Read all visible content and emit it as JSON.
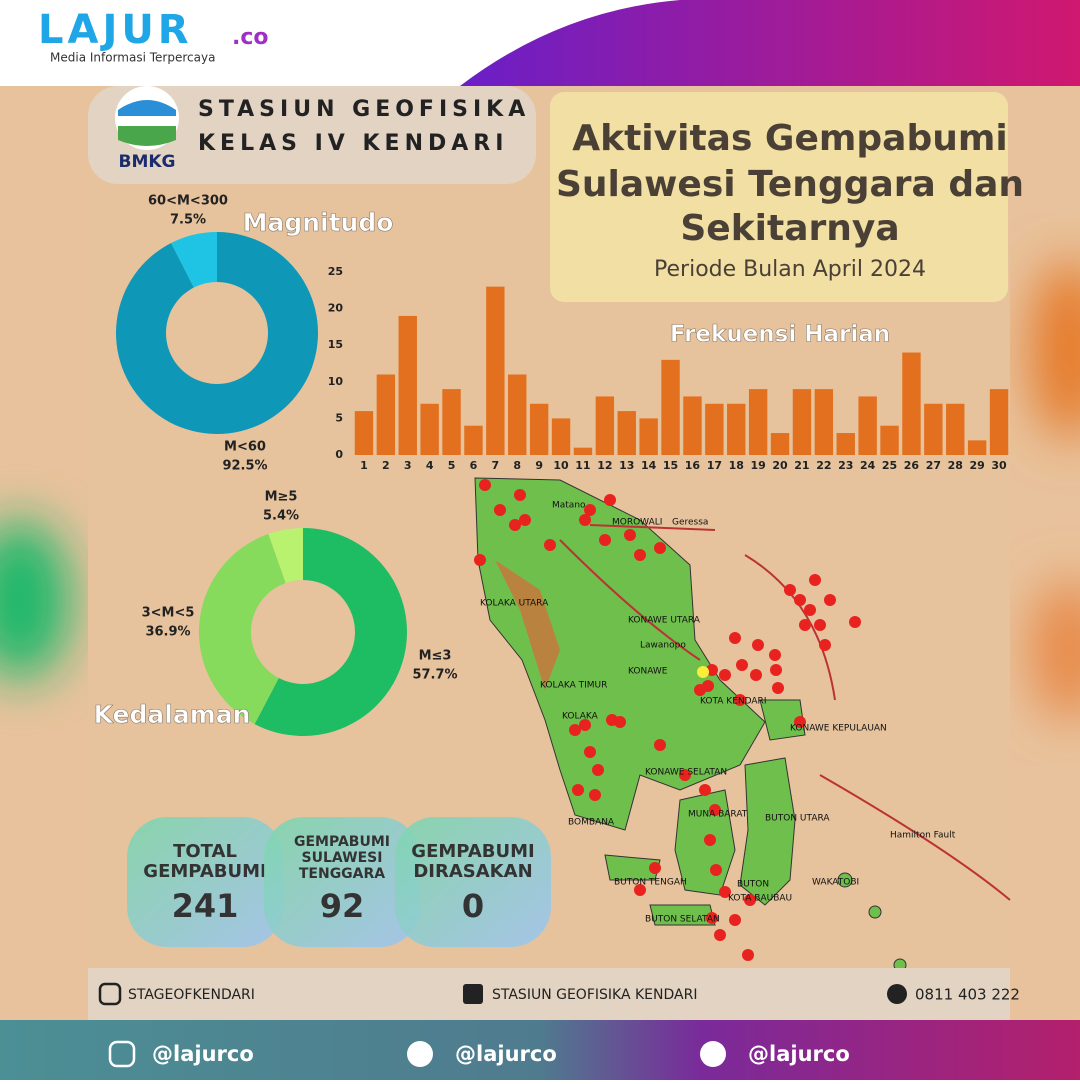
{
  "header": {
    "brand": "LAJUR",
    "brand_suffix": ".co",
    "tagline": "Media Informasi Terpercaya"
  },
  "agency": {
    "logo_text": "BMKG",
    "line1": "STASIUN GEOFISIKA",
    "line2": "KELAS IV KENDARI"
  },
  "title": {
    "lines": [
      "Aktivitas Gempabumi",
      "Sulawesi Tenggara dan",
      "Sekitarnya"
    ],
    "subtitle": "Periode Bulan April 2024"
  },
  "chart_data": [
    {
      "type": "donut",
      "title": "Magnitudo",
      "categories": [
        "M<60",
        "60<M<300"
      ],
      "values": [
        92.5,
        7.5
      ],
      "value_labels": [
        "92.5%",
        "7.5%"
      ],
      "colors": [
        "#0f97b7",
        "#1fc3e3"
      ]
    },
    {
      "type": "bar",
      "title": "Frekuensi Harian",
      "categories": [
        "1",
        "2",
        "3",
        "4",
        "5",
        "6",
        "7",
        "8",
        "9",
        "10",
        "11",
        "12",
        "13",
        "14",
        "15",
        "16",
        "17",
        "18",
        "19",
        "20",
        "21",
        "22",
        "23",
        "24",
        "25",
        "26",
        "27",
        "28",
        "29",
        "30"
      ],
      "values": [
        6,
        11,
        19,
        7,
        9,
        4,
        23,
        11,
        7,
        5,
        1,
        8,
        6,
        5,
        13,
        8,
        7,
        7,
        9,
        3,
        9,
        9,
        3,
        8,
        4,
        14,
        7,
        7,
        2,
        9
      ],
      "color": "#e2701f",
      "ylim": [
        0,
        25
      ],
      "yticks": [
        0,
        5,
        10,
        15,
        20,
        25
      ],
      "grid": false
    },
    {
      "type": "donut",
      "title": "Kedalaman",
      "categories": [
        "M≤3",
        "3<M<5",
        "M≥5"
      ],
      "values": [
        57.7,
        36.9,
        5.4
      ],
      "value_labels": [
        "57.7%",
        "36.9%",
        "5.4%"
      ],
      "colors": [
        "#1ebd63",
        "#86da5c",
        "#b8f26f"
      ]
    }
  ],
  "map": {
    "labels": [
      "MOROWALI",
      "Geressa",
      "Matano",
      "KOLAKA UTARA",
      "KONAWE UTARA",
      "KONAWE",
      "KOLAKA TIMUR",
      "KOLAKA",
      "KOTA KENDARI",
      "KONAWE KEPULAUAN",
      "KONAWE SELATAN",
      "BOMBANA",
      "BUTON UTARA",
      "MUNA BARAT",
      "BUTON TENGAH",
      "BUTON",
      "KOTA BAUBAU",
      "BUTON SELATAN",
      "WAKATOBI",
      "Hamilton Fault",
      "Lawanopo"
    ]
  },
  "stats": [
    {
      "label": [
        "TOTAL",
        "GEMPABUMI"
      ],
      "value": 241
    },
    {
      "label": [
        "GEMPABUMI",
        "SULAWESI",
        "TENGGARA"
      ],
      "value": 92
    },
    {
      "label": [
        "GEMPABUMI",
        "DIRASAKAN"
      ],
      "value": 0
    }
  ],
  "inner_footer": {
    "instagram": "STAGEOFKENDARI",
    "facebook": "STASIUN GEOFISIKA KENDARI",
    "phone": "0811 403 222"
  },
  "footer": {
    "handles": [
      "@lajurco",
      "@lajurco",
      "@lajurco"
    ]
  }
}
